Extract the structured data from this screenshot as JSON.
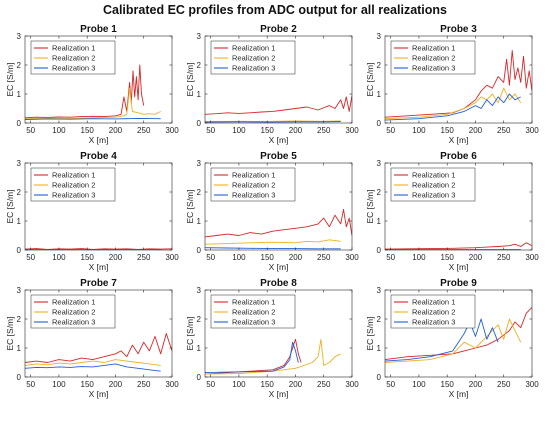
{
  "figure_title": "Calibrated EC profiles from ADC output for all realizations",
  "colors": {
    "Realization 1": "#d62728",
    "Realization 2": "#edb120",
    "Realization 3": "#1f5fd6"
  },
  "chart_data": [
    {
      "type": "line",
      "title": "Probe 1",
      "xlabel": "X [m]",
      "ylabel": "EC [S/m]",
      "xlim": [
        40,
        300
      ],
      "ylim": [
        0,
        3
      ],
      "xticks": [
        "50",
        "100",
        "150",
        "200",
        "250",
        "300"
      ],
      "yticks": [
        "0",
        "1",
        "2",
        "3"
      ],
      "legend": "top-left",
      "series": [
        {
          "name": "Realization 1",
          "x": [
            40,
            60,
            80,
            100,
            120,
            140,
            160,
            180,
            200,
            210,
            215,
            220,
            225,
            228,
            231,
            234,
            237,
            240,
            243,
            246,
            250
          ],
          "y": [
            0.18,
            0.2,
            0.19,
            0.21,
            0.2,
            0.22,
            0.23,
            0.22,
            0.25,
            0.3,
            0.9,
            0.4,
            1.4,
            0.7,
            1.8,
            0.9,
            1.6,
            0.8,
            2.0,
            1.0,
            0.6
          ]
        },
        {
          "name": "Realization 2",
          "x": [
            40,
            80,
            120,
            160,
            200,
            215,
            220,
            225,
            230,
            240,
            250,
            260,
            270,
            280
          ],
          "y": [
            0.15,
            0.17,
            0.16,
            0.18,
            0.2,
            0.25,
            0.3,
            1.2,
            0.4,
            0.35,
            0.3,
            0.32,
            0.3,
            0.4
          ]
        },
        {
          "name": "Realization 3",
          "x": [
            40,
            80,
            120,
            160,
            200,
            240,
            280
          ],
          "y": [
            0.12,
            0.14,
            0.13,
            0.15,
            0.14,
            0.16,
            0.15
          ]
        }
      ]
    },
    {
      "type": "line",
      "title": "Probe 2",
      "xlabel": "X [m]",
      "ylabel": "EC [S/m]",
      "xlim": [
        40,
        300
      ],
      "ylim": [
        0,
        3
      ],
      "xticks": [
        "50",
        "100",
        "150",
        "200",
        "250",
        "300"
      ],
      "yticks": [
        "0",
        "1",
        "2",
        "3"
      ],
      "legend": "top-left",
      "series": [
        {
          "name": "Realization 1",
          "x": [
            40,
            60,
            80,
            100,
            120,
            140,
            160,
            180,
            200,
            220,
            240,
            260,
            270,
            280,
            285,
            290,
            295,
            300
          ],
          "y": [
            0.3,
            0.32,
            0.35,
            0.33,
            0.35,
            0.38,
            0.4,
            0.45,
            0.5,
            0.55,
            0.45,
            0.6,
            0.5,
            0.8,
            0.5,
            0.9,
            0.4,
            0.95
          ]
        },
        {
          "name": "Realization 2",
          "x": [
            40,
            100,
            150,
            200,
            250,
            280
          ],
          "y": [
            0.05,
            0.06,
            0.05,
            0.07,
            0.06,
            0.07
          ]
        },
        {
          "name": "Realization 3",
          "x": [
            40,
            100,
            150,
            200,
            250,
            280
          ],
          "y": [
            0.03,
            0.04,
            0.03,
            0.04,
            0.04,
            0.05
          ]
        }
      ]
    },
    {
      "type": "line",
      "title": "Probe 3",
      "xlabel": "X [m]",
      "ylabel": "EC [S/m]",
      "xlim": [
        40,
        300
      ],
      "ylim": [
        0,
        3
      ],
      "xticks": [
        "50",
        "100",
        "150",
        "200",
        "250",
        "300"
      ],
      "yticks": [
        "0",
        "1",
        "2",
        "3"
      ],
      "legend": "top-left",
      "series": [
        {
          "name": "Realization 1",
          "x": [
            40,
            80,
            120,
            160,
            180,
            200,
            210,
            220,
            230,
            240,
            250,
            255,
            260,
            265,
            270,
            275,
            280,
            285,
            290,
            295,
            300
          ],
          "y": [
            0.2,
            0.25,
            0.3,
            0.35,
            0.5,
            0.8,
            1.1,
            1.3,
            1.2,
            1.6,
            1.4,
            2.2,
            1.3,
            2.5,
            1.5,
            1.9,
            1.4,
            2.3,
            1.2,
            1.8,
            1.1
          ]
        },
        {
          "name": "Realization 2",
          "x": [
            40,
            100,
            150,
            180,
            200,
            210,
            220,
            230,
            240,
            250,
            260,
            270,
            280
          ],
          "y": [
            0.15,
            0.2,
            0.3,
            0.5,
            0.7,
            0.9,
            0.8,
            1.0,
            0.7,
            1.2,
            0.8,
            1.0,
            0.7
          ]
        },
        {
          "name": "Realization 3",
          "x": [
            40,
            100,
            150,
            180,
            200,
            210,
            220,
            230,
            240,
            250,
            260,
            270,
            280
          ],
          "y": [
            0.1,
            0.15,
            0.25,
            0.4,
            0.6,
            0.5,
            0.8,
            0.6,
            0.9,
            0.7,
            1.0,
            0.8,
            0.9
          ]
        }
      ]
    },
    {
      "type": "line",
      "title": "Probe 4",
      "xlabel": "X [m]",
      "ylabel": "EC [S/m]",
      "xlim": [
        40,
        300
      ],
      "ylim": [
        0,
        3
      ],
      "xticks": [
        "50",
        "100",
        "150",
        "200",
        "250",
        "300"
      ],
      "yticks": [
        "0",
        "1",
        "2",
        "3"
      ],
      "legend": "top-left",
      "series": [
        {
          "name": "Realization 1",
          "x": [
            40,
            60,
            80,
            100,
            120,
            140,
            160,
            180,
            200,
            220,
            240,
            260,
            280,
            300
          ],
          "y": [
            0.03,
            0.05,
            0.02,
            0.04,
            0.03,
            0.05,
            0.02,
            0.04,
            0.03,
            0.04,
            0.02,
            0.04,
            0.03,
            0.04
          ]
        },
        {
          "name": "Realization 2",
          "x": [
            40,
            100,
            160,
            220,
            280
          ],
          "y": [
            0.01,
            0.01,
            0.01,
            0.01,
            0.01
          ]
        },
        {
          "name": "Realization 3",
          "x": [
            40,
            100,
            160,
            220,
            280
          ],
          "y": [
            0.01,
            0.01,
            0.01,
            0.01,
            0.01
          ]
        }
      ]
    },
    {
      "type": "line",
      "title": "Probe 5",
      "xlabel": "X [m]",
      "ylabel": "EC [S/m]",
      "xlim": [
        40,
        300
      ],
      "ylim": [
        0,
        3
      ],
      "xticks": [
        "50",
        "100",
        "150",
        "200",
        "250",
        "300"
      ],
      "yticks": [
        "0",
        "1",
        "2",
        "3"
      ],
      "legend": "top-left",
      "series": [
        {
          "name": "Realization 1",
          "x": [
            40,
            60,
            80,
            100,
            120,
            140,
            160,
            180,
            200,
            220,
            240,
            250,
            260,
            270,
            280,
            285,
            290,
            295,
            300
          ],
          "y": [
            0.45,
            0.5,
            0.55,
            0.5,
            0.6,
            0.55,
            0.65,
            0.7,
            0.75,
            0.8,
            0.9,
            1.1,
            0.8,
            1.2,
            0.9,
            1.4,
            0.8,
            1.1,
            0.5
          ]
        },
        {
          "name": "Realization 2",
          "x": [
            40,
            80,
            120,
            160,
            200,
            220,
            240,
            260,
            280
          ],
          "y": [
            0.2,
            0.22,
            0.25,
            0.27,
            0.25,
            0.3,
            0.28,
            0.35,
            0.3
          ]
        },
        {
          "name": "Realization 3",
          "x": [
            40,
            80,
            120,
            160,
            200,
            240,
            280
          ],
          "y": [
            0.08,
            0.07,
            0.06,
            0.05,
            0.05,
            0.04,
            0.04
          ]
        }
      ]
    },
    {
      "type": "line",
      "title": "Probe 6",
      "xlabel": "X [m]",
      "ylabel": "EC [S/m]",
      "xlim": [
        40,
        300
      ],
      "ylim": [
        0,
        3
      ],
      "xticks": [
        "50",
        "100",
        "150",
        "200",
        "250",
        "300"
      ],
      "yticks": [
        "0",
        "1",
        "2",
        "3"
      ],
      "legend": "top-left",
      "series": [
        {
          "name": "Realization 1",
          "x": [
            40,
            80,
            120,
            160,
            200,
            220,
            240,
            260,
            270,
            280,
            290,
            300
          ],
          "y": [
            0.03,
            0.04,
            0.05,
            0.06,
            0.08,
            0.1,
            0.12,
            0.15,
            0.2,
            0.12,
            0.25,
            0.15
          ]
        },
        {
          "name": "Realization 2",
          "x": [
            40,
            100,
            160,
            220,
            280
          ],
          "y": [
            0.01,
            0.01,
            0.01,
            0.01,
            0.01
          ]
        },
        {
          "name": "Realization 3",
          "x": [
            40,
            100,
            160,
            220,
            280
          ],
          "y": [
            0.01,
            0.01,
            0.01,
            0.01,
            0.01
          ]
        }
      ]
    },
    {
      "type": "line",
      "title": "Probe 7",
      "xlabel": "X [m]",
      "ylabel": "EC [S/m]",
      "xlim": [
        40,
        300
      ],
      "ylim": [
        0,
        3
      ],
      "xticks": [
        "50",
        "100",
        "150",
        "200",
        "250",
        "300"
      ],
      "yticks": [
        "0",
        "1",
        "2",
        "3"
      ],
      "legend": "top-left",
      "series": [
        {
          "name": "Realization 1",
          "x": [
            40,
            60,
            80,
            100,
            120,
            140,
            160,
            180,
            200,
            210,
            220,
            230,
            240,
            250,
            260,
            270,
            280,
            290,
            300
          ],
          "y": [
            0.5,
            0.55,
            0.5,
            0.6,
            0.55,
            0.65,
            0.6,
            0.7,
            0.8,
            0.9,
            0.7,
            1.1,
            0.8,
            1.2,
            0.9,
            1.4,
            0.8,
            1.5,
            0.9
          ]
        },
        {
          "name": "Realization 2",
          "x": [
            40,
            60,
            80,
            100,
            120,
            140,
            160,
            180,
            200,
            220,
            240,
            260,
            280
          ],
          "y": [
            0.4,
            0.45,
            0.42,
            0.48,
            0.45,
            0.5,
            0.55,
            0.5,
            0.6,
            0.55,
            0.5,
            0.45,
            0.4
          ]
        },
        {
          "name": "Realization 3",
          "x": [
            40,
            60,
            80,
            100,
            120,
            140,
            160,
            180,
            200,
            220,
            240,
            260,
            280
          ],
          "y": [
            0.3,
            0.33,
            0.32,
            0.35,
            0.33,
            0.36,
            0.35,
            0.4,
            0.45,
            0.35,
            0.3,
            0.25,
            0.2
          ]
        }
      ]
    },
    {
      "type": "line",
      "title": "Probe 8",
      "xlabel": "X [m]",
      "ylabel": "EC [S/m]",
      "xlim": [
        40,
        300
      ],
      "ylim": [
        0,
        3
      ],
      "xticks": [
        "50",
        "100",
        "150",
        "200",
        "250",
        "300"
      ],
      "yticks": [
        "0",
        "1",
        "2",
        "3"
      ],
      "legend": "top-left",
      "series": [
        {
          "name": "Realization 1",
          "x": [
            40,
            80,
            120,
            160,
            180,
            190,
            195,
            200,
            205,
            210
          ],
          "y": [
            0.1,
            0.15,
            0.2,
            0.25,
            0.4,
            0.7,
            1.0,
            1.3,
            0.8,
            0.5
          ]
        },
        {
          "name": "Realization 2",
          "x": [
            40,
            100,
            160,
            200,
            230,
            240,
            245,
            250,
            260,
            270,
            280
          ],
          "y": [
            0.1,
            0.12,
            0.2,
            0.3,
            0.5,
            0.7,
            1.3,
            0.4,
            0.5,
            0.7,
            0.8
          ]
        },
        {
          "name": "Realization 3",
          "x": [
            40,
            100,
            160,
            180,
            190,
            195,
            200,
            205
          ],
          "y": [
            0.15,
            0.18,
            0.2,
            0.35,
            0.6,
            1.2,
            0.9,
            0.5
          ]
        }
      ]
    },
    {
      "type": "line",
      "title": "Probe 9",
      "xlabel": "X [m]",
      "ylabel": "EC [S/m]",
      "xlim": [
        40,
        300
      ],
      "ylim": [
        0,
        3
      ],
      "xticks": [
        "50",
        "100",
        "150",
        "200",
        "250",
        "300"
      ],
      "yticks": [
        "0",
        "1",
        "2",
        "3"
      ],
      "legend": "top-left",
      "series": [
        {
          "name": "Realization 1",
          "x": [
            40,
            80,
            120,
            160,
            180,
            200,
            220,
            240,
            260,
            270,
            280,
            290,
            300
          ],
          "y": [
            0.6,
            0.7,
            0.75,
            0.8,
            0.9,
            1.0,
            1.1,
            1.3,
            1.6,
            1.9,
            1.7,
            2.2,
            2.4
          ]
        },
        {
          "name": "Realization 2",
          "x": [
            40,
            80,
            120,
            160,
            180,
            200,
            220,
            240,
            250,
            260,
            270,
            280
          ],
          "y": [
            0.5,
            0.55,
            0.6,
            0.8,
            1.2,
            1.0,
            1.4,
            1.8,
            1.3,
            2.0,
            1.6,
            1.2
          ]
        },
        {
          "name": "Realization 3",
          "x": [
            40,
            80,
            120,
            160,
            180,
            190,
            200,
            210,
            220,
            230,
            240
          ],
          "y": [
            0.55,
            0.6,
            0.7,
            0.9,
            1.5,
            1.9,
            1.4,
            2.0,
            1.3,
            1.7,
            1.2
          ]
        }
      ]
    }
  ]
}
